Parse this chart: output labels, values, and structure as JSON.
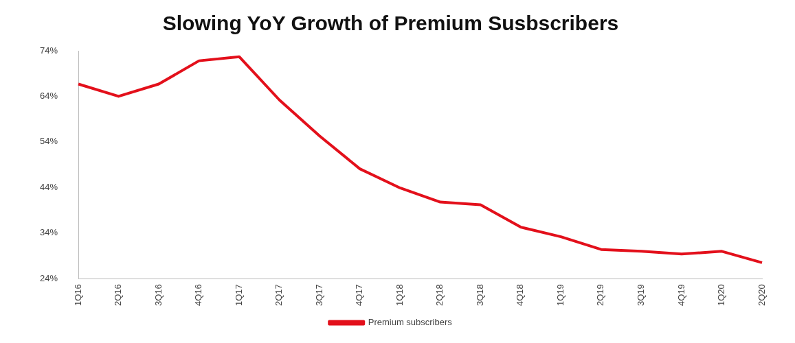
{
  "chart_data": {
    "type": "line",
    "title": "Slowing YoY Growth of Premium Susbscribers",
    "categories": [
      "1Q16",
      "2Q16",
      "3Q16",
      "4Q16",
      "1Q17",
      "2Q17",
      "3Q17",
      "4Q17",
      "1Q18",
      "2Q18",
      "3Q18",
      "4Q18",
      "1Q19",
      "2Q19",
      "3Q19",
      "4Q19",
      "1Q20",
      "2Q20"
    ],
    "series": [
      {
        "name": "Premium subscribers",
        "color": "#e3101b",
        "values": [
          66.7,
          64.0,
          66.7,
          71.8,
          72.7,
          63.2,
          55.3,
          48.1,
          43.9,
          40.8,
          40.2,
          35.3,
          33.2,
          30.4,
          30.0,
          29.4,
          30.0,
          27.5
        ]
      }
    ],
    "ylim": [
      24,
      74
    ],
    "yticks": [
      {
        "value": 24,
        "label": "24%"
      },
      {
        "value": 34,
        "label": "34%"
      },
      {
        "value": 44,
        "label": "44%"
      },
      {
        "value": 54,
        "label": "54%"
      },
      {
        "value": 64,
        "label": "64%"
      },
      {
        "value": 74,
        "label": "74%"
      }
    ],
    "grid": false,
    "legend": "bottom",
    "marker": "none",
    "line_style": "solid"
  }
}
